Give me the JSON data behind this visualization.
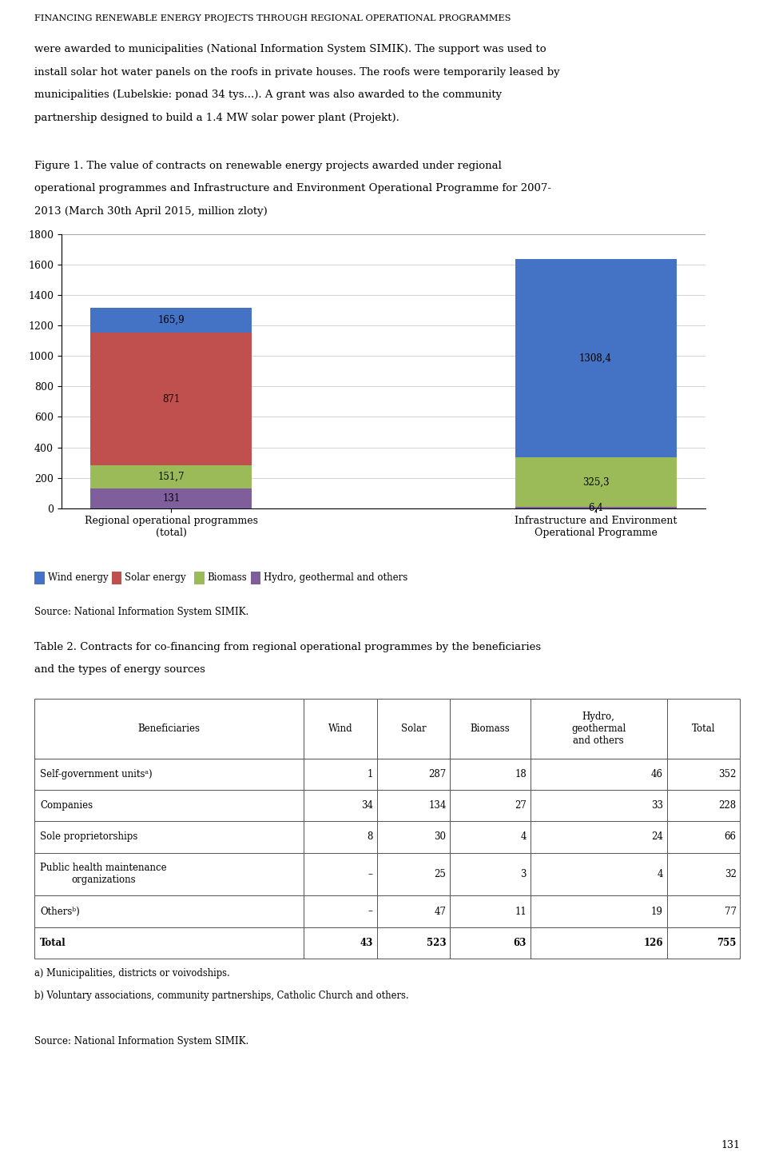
{
  "page_title": "FINANCING RENEWABLE ENERGY PROJECTS THROUGH REGIONAL OPERATIONAL PROGRAMMES",
  "intro_lines": [
    "were awarded to municipalities (National Information System SIMIK). The support was used to",
    "install solar hot water panels on the roofs in private houses. The roofs were temporarily leased by",
    "municipalities (Lubelskie: ponad 34 tys...). A grant was also awarded to the community",
    "partnership designed to build a 1.4 MW solar power plant (Projekt)."
  ],
  "figure_caption_lines": [
    "Figure 1. The value of contracts on renewable energy projects awarded under regional",
    "operational programmes and Infrastructure and Environment Operational Programme for 2007-",
    "2013 (March 30th April 2015, million zloty)"
  ],
  "chart": {
    "categories": [
      "Regional operational programmes\n(total)",
      "Infrastructure and Environment\nOperational Programme"
    ],
    "wind": [
      165.9,
      1308.4
    ],
    "solar": [
      871.0,
      0.0
    ],
    "biomass": [
      151.7,
      325.3
    ],
    "hydro": [
      131.0,
      6.4
    ],
    "wind_color": "#4472C4",
    "solar_color": "#C0504D",
    "biomass_color": "#9BBB59",
    "hydro_color": "#7F5F9B",
    "ylim": [
      0,
      1800
    ],
    "yticks": [
      0,
      200,
      400,
      600,
      800,
      1000,
      1200,
      1400,
      1600,
      1800
    ]
  },
  "legend": [
    "Wind energy",
    "Solar energy",
    "Biomass",
    "Hydro, geothermal and others"
  ],
  "source_chart": "Source: National Information System SIMIK.",
  "table2_title_lines": [
    "Table 2. Contracts for co-financing from regional operational programmes by the beneficiaries",
    "and the types of energy sources"
  ],
  "table2_headers": [
    "Beneficiaries",
    "Wind",
    "Solar",
    "Biomass",
    "Hydro,\ngeothermal\nand others",
    "Total"
  ],
  "table2_rows": [
    [
      "Self-government unitsᵃ)",
      "1",
      "287",
      "18",
      "46",
      "352"
    ],
    [
      "Companies",
      "34",
      "134",
      "27",
      "33",
      "228"
    ],
    [
      "Sole proprietorships",
      "8",
      "30",
      "4",
      "24",
      "66"
    ],
    [
      "Public health maintenance\norganizations",
      "–",
      "25",
      "3",
      "4",
      "32"
    ],
    [
      "Othersᵇ)",
      "–",
      "47",
      "11",
      "19",
      "77"
    ],
    [
      "Total",
      "43",
      "523",
      "63",
      "126",
      "755"
    ]
  ],
  "footnote_a": "a) Municipalities, districts or voivodships.",
  "footnote_b": "b) Voluntary associations, community partnerships, Catholic Church and others.",
  "source_table": "Source: National Information System SIMIK.",
  "page_number": "131",
  "background_color": "#FFFFFF"
}
